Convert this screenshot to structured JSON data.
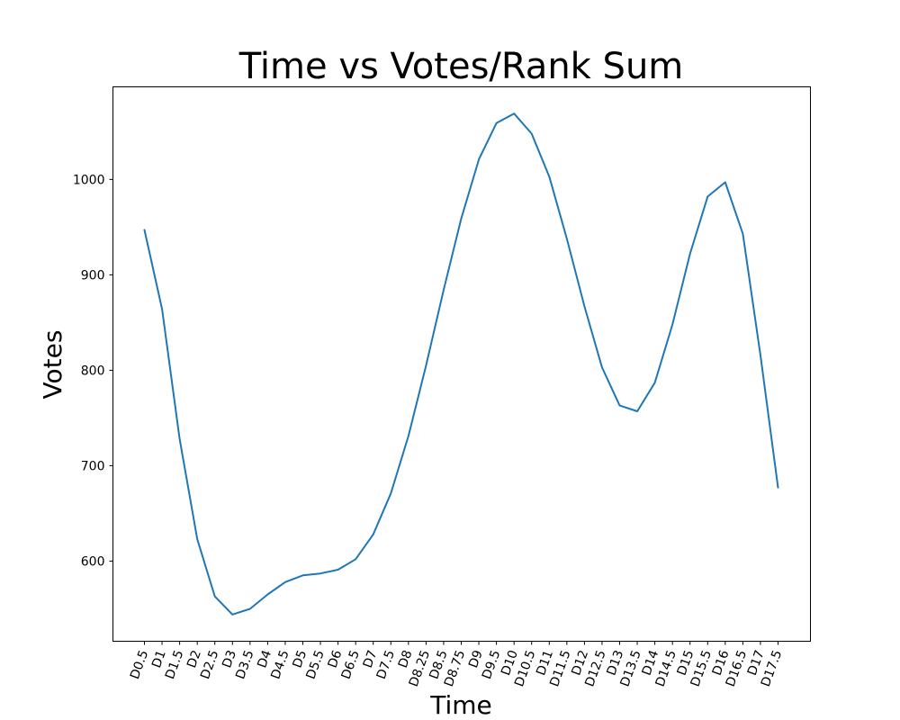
{
  "chart_data": {
    "type": "line",
    "title": "Time vs Votes/Rank Sum",
    "xlabel": "Time",
    "ylabel": "Votes",
    "categories": [
      "D0.5",
      "D1",
      "D1.5",
      "D2",
      "D2.5",
      "D3",
      "D3.5",
      "D4",
      "D4.5",
      "D5",
      "D5.5",
      "D6",
      "D6.5",
      "D7",
      "D7.5",
      "D8",
      "D8.25",
      "D8.5",
      "D8.75",
      "D9",
      "D9.5",
      "D10",
      "D10.5",
      "D11",
      "D11.5",
      "D12",
      "D12.5",
      "D13",
      "D13.5",
      "D14",
      "D14.5",
      "D15",
      "D15.5",
      "D16",
      "D16.5",
      "D17",
      "D17.5"
    ],
    "series": [
      {
        "values": [
          947,
          864,
          728,
          623,
          563,
          544,
          550,
          565,
          578,
          585,
          587,
          591,
          602,
          628,
          671,
          731,
          805,
          884,
          959,
          1021,
          1059,
          1069,
          1048,
          1003,
          938,
          867,
          803,
          763,
          757,
          787,
          848,
          922,
          982,
          997,
          943,
          816,
          677
        ],
        "color": "#1f77b4"
      }
    ],
    "yticks": [
      600,
      700,
      800,
      900,
      1000
    ],
    "ylim": [
      516,
      1097
    ],
    "grid": false
  }
}
